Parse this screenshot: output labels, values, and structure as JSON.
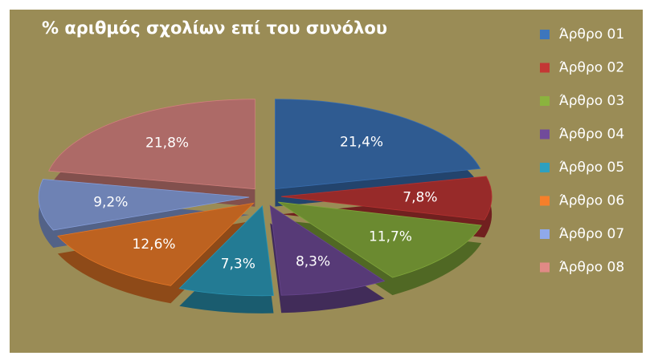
{
  "chart_data": {
    "type": "pie",
    "title": "% αριθμός σχολίων επί του συνόλου",
    "categories": [
      "Άρθρο 01",
      "Άρθρο 02",
      "Άρθρο 03",
      "Άρθρο 04",
      "Άρθρο 05",
      "Άρθρο 06",
      "Άρθρο 07",
      "Άρθρο 08"
    ],
    "values": [
      21.4,
      7.8,
      11.7,
      8.3,
      7.3,
      12.6,
      9.2,
      21.8
    ],
    "value_labels": [
      "21,4%",
      "7,8%",
      "11,7%",
      "8,3%",
      "7,3%",
      "12,6%",
      "9,2%",
      "21,8%"
    ],
    "colors": [
      "#2f5b91",
      "#972a29",
      "#6b8a30",
      "#573a77",
      "#237b94",
      "#bd6220",
      "#6e82b4",
      "#ad6a67"
    ],
    "legend": "right"
  }
}
